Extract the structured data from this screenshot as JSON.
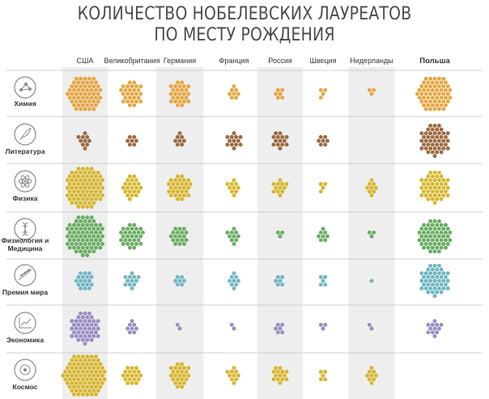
{
  "title": {
    "line1": "КОЛИЧЕСТВО НОБЕЛЕВСКИХ ЛАУРЕАТОВ",
    "line2": "ПО МЕСТУ РОЖДЕНИЯ"
  },
  "colors": {
    "chemistry": "#e8a641",
    "literature": "#9c6a40",
    "physics": "#d8b62a",
    "medicine": "#69ad62",
    "peace": "#6fb6c0",
    "economics": "#9a8cc4",
    "space": "#d8b62a",
    "column_shade": "#eeeeee",
    "divider": "#cfcfcf",
    "icon": "#8a8a8a"
  },
  "chart_data": {
    "type": "dot-cluster-matrix",
    "title": "КОЛИЧЕСТВО НОБЕЛЕВСКИХ ЛАУРЕАТОВ ПО МЕСТУ РОЖДЕНИЯ",
    "columns": [
      "США",
      "Великобритания",
      "Германия",
      "Франция",
      "Россия",
      "Швеция",
      "Нидерланды",
      "Польша"
    ],
    "rows": [
      {
        "label": "Химия",
        "icon": "molecule-icon",
        "color_key": "chemistry",
        "values": [
          60,
          28,
          27,
          8,
          6,
          4,
          3,
          60
        ]
      },
      {
        "label": "Литература",
        "icon": "quill-icon",
        "color_key": "literature",
        "values": [
          10,
          7,
          8,
          13,
          14,
          7,
          0,
          45
        ]
      },
      {
        "label": "Физика",
        "icon": "atom-icon",
        "color_key": "physics",
        "values": [
          80,
          22,
          30,
          10,
          12,
          4,
          9,
          45
        ]
      },
      {
        "label": "Физиология и Медицина",
        "icon": "dna-icon",
        "color_key": "medicine",
        "values": [
          75,
          30,
          18,
          10,
          3,
          8,
          3,
          55
        ]
      },
      {
        "label": "Премия мира",
        "icon": "olive-branch-icon",
        "color_key": "peace",
        "values": [
          18,
          12,
          7,
          9,
          6,
          5,
          1,
          45
        ]
      },
      {
        "label": "Экономика",
        "icon": "graph-icon",
        "color_key": "economics",
        "values": [
          45,
          8,
          2,
          2,
          6,
          3,
          2,
          12
        ]
      },
      {
        "label": "Космос",
        "icon": "space-disc-icon",
        "color_key": "space",
        "values": [
          90,
          19,
          25,
          10,
          14,
          5,
          9,
          0
        ]
      }
    ]
  }
}
